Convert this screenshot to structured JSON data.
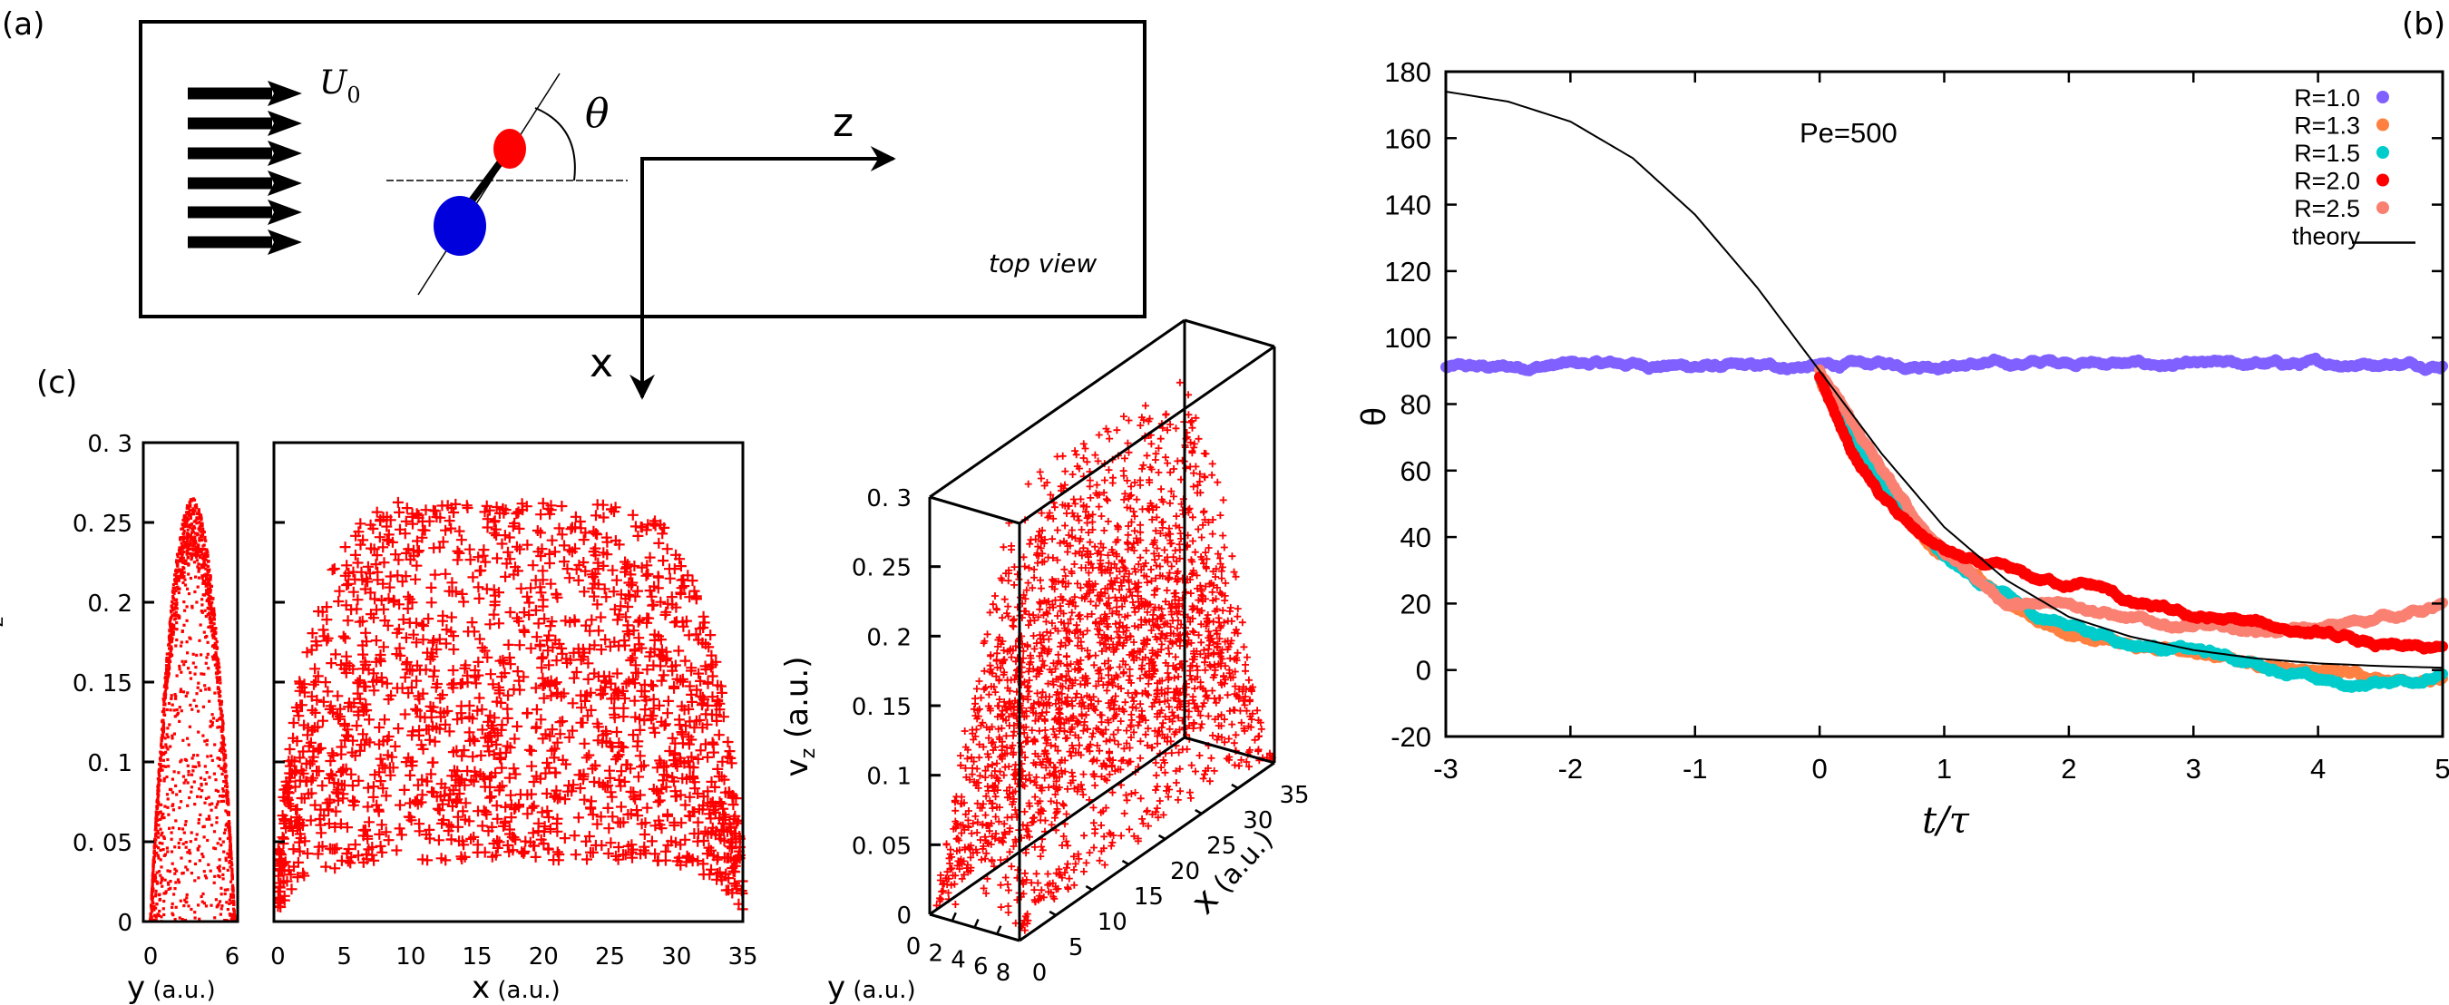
{
  "panels": {
    "a": {
      "label": "(a)",
      "flow_label": "U",
      "flow_subscript": "0",
      "angle_label": "θ",
      "axis_z": "z",
      "axis_x": "x",
      "view_label": "top view",
      "colors": {
        "front_bead": "#ff0000",
        "rear_bead": "#0000dd"
      }
    },
    "b": {
      "label": "(b)"
    },
    "c": {
      "label": "(c)"
    }
  },
  "chart_data": [
    {
      "id": "panel-b",
      "type": "line",
      "title": "",
      "annotation": "Pe=500",
      "xlabel": "t/τ",
      "ylabel": "θ",
      "xlim": [
        -3,
        5
      ],
      "ylim": [
        -20,
        180
      ],
      "xticks": [
        -3,
        -2,
        -1,
        0,
        1,
        2,
        3,
        4,
        5
      ],
      "yticks": [
        -20,
        0,
        20,
        40,
        60,
        80,
        100,
        120,
        140,
        160,
        180
      ],
      "grid": false,
      "legend_position": "top-right",
      "series": [
        {
          "name": "R=1.0",
          "color": "#8060ff",
          "marker": "dot",
          "x": [
            -3,
            -2.5,
            -2,
            -1.5,
            -1,
            -0.5,
            0,
            0.5,
            1,
            1.5,
            2,
            2.5,
            3,
            3.5,
            4,
            4.5,
            5
          ],
          "y": [
            91,
            91,
            92,
            92,
            91.5,
            91,
            91.5,
            92,
            92,
            92,
            93,
            92,
            91.5,
            92,
            92,
            92.5,
            92
          ]
        },
        {
          "name": "R=1.3",
          "color": "#ff8040",
          "marker": "dot",
          "x": [
            0,
            0.25,
            0.5,
            0.75,
            1,
            1.25,
            1.5,
            1.75,
            2,
            2.5,
            3,
            3.5,
            4,
            4.5,
            5
          ],
          "y": [
            88,
            70,
            55,
            44,
            34,
            28,
            20,
            15,
            10,
            8,
            5,
            2,
            0,
            -2,
            -3
          ]
        },
        {
          "name": "R=1.5",
          "color": "#00cccc",
          "marker": "dot",
          "x": [
            0,
            0.25,
            0.5,
            0.75,
            1,
            1.25,
            1.5,
            1.75,
            2,
            2.5,
            3,
            3.5,
            4,
            4.3,
            4.6,
            5
          ],
          "y": [
            88,
            72,
            57,
            45,
            33,
            27,
            22,
            16,
            14,
            8,
            6,
            2,
            -3,
            -5,
            -3,
            -2
          ]
        },
        {
          "name": "R=2.0",
          "color": "#ff0000",
          "marker": "dot",
          "x": [
            0,
            0.25,
            0.5,
            0.75,
            1,
            1.25,
            1.5,
            1.75,
            2,
            2.25,
            2.5,
            3,
            3.5,
            4,
            4.5,
            5
          ],
          "y": [
            88,
            66,
            52,
            42,
            36,
            32,
            30,
            27,
            26,
            25,
            20,
            16,
            14,
            11,
            7,
            6
          ]
        },
        {
          "name": "R=2.5",
          "color": "#fa8072",
          "marker": "dot",
          "x": [
            0,
            0.25,
            0.5,
            0.75,
            1,
            1.25,
            1.5,
            1.75,
            2,
            2.5,
            3,
            3.5,
            4,
            4.5,
            5
          ],
          "y": [
            90,
            75,
            60,
            46,
            36,
            28,
            20,
            19,
            21,
            15,
            13,
            12,
            12,
            16,
            19
          ]
        },
        {
          "name": "theory",
          "color": "#000000",
          "marker": "line",
          "x": [
            -3,
            -2.5,
            -2,
            -1.5,
            -1,
            -0.5,
            0,
            0.5,
            1,
            1.5,
            2,
            2.5,
            3,
            3.5,
            4,
            4.5,
            5
          ],
          "y": [
            174,
            171,
            165,
            154,
            137,
            115,
            90,
            65,
            43,
            27,
            16,
            10,
            6,
            3.5,
            2,
            1.2,
            0.7
          ]
        }
      ]
    },
    {
      "id": "panel-c-left",
      "type": "scatter",
      "xlabel": "y (a.u.)",
      "ylabel": "v_z (a.u.)",
      "xlim": [
        -0.5,
        6.2
      ],
      "ylim": [
        0,
        0.3
      ],
      "xticks": [
        0,
        6
      ],
      "yticks": [
        0,
        0.05,
        0.1,
        0.15,
        0.2,
        0.25,
        0.3
      ],
      "ytick_labels": [
        "0",
        "0. 05",
        "0. 1",
        "0. 15",
        "0. 2",
        "0. 25",
        "0. 3"
      ],
      "color": "#ff0000",
      "marker": "dot",
      "profile": "parabolic in y, peak ≈0.265 at y≈3"
    },
    {
      "id": "panel-c-middle",
      "type": "scatter",
      "xlabel": "x (a.u.)",
      "ylabel": "",
      "xlim": [
        -0.3,
        35
      ],
      "ylim": [
        0,
        0.3
      ],
      "xticks": [
        0,
        5,
        10,
        15,
        20,
        25,
        30,
        35
      ],
      "yticks": [
        0,
        0.05,
        0.1,
        0.15,
        0.2,
        0.25,
        0.3
      ],
      "color": "#ff0000",
      "marker": "plus",
      "profile": "plug-like in x, max ≈0.27 for x in 8–28"
    },
    {
      "id": "panel-c-3d",
      "type": "scatter",
      "xlabel": "x (a.u.)",
      "ylabel": "y (a.u.)",
      "zlabel": "v_z (a.u.)",
      "xticks": [
        0,
        5,
        10,
        15,
        20,
        25,
        30,
        35
      ],
      "yticks": [
        0,
        2,
        4,
        6,
        8
      ],
      "zticks": [
        0,
        0.05,
        0.1,
        0.15,
        0.2,
        0.25,
        0.3
      ],
      "ztick_labels": [
        "0",
        "0. 05",
        "0. 1",
        "0. 15",
        "0. 2",
        "0. 25",
        "0. 3"
      ],
      "color": "#ff0000",
      "marker": "plus"
    }
  ]
}
